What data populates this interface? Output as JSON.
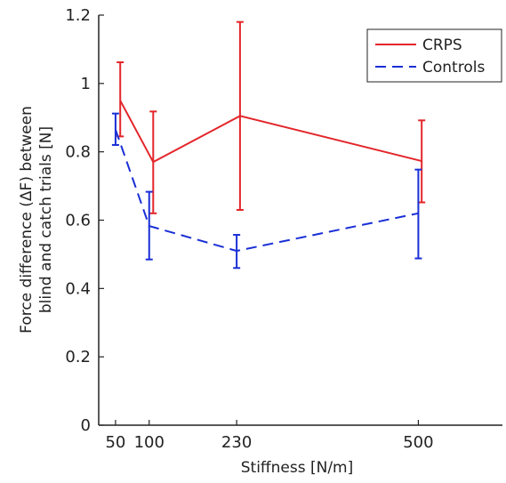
{
  "chart_data": {
    "type": "line",
    "xlabel": "Stiffness [N/m]",
    "ylabel_lines": [
      "Force difference (ΔF) between",
      "blind and catch trials [N]"
    ],
    "xlim": [
      25,
      625
    ],
    "ylim": [
      0,
      1.2
    ],
    "xticks": [
      50,
      100,
      230,
      500
    ],
    "xtick_labels": [
      "50",
      "100",
      "230",
      "500"
    ],
    "yticks": [
      0,
      0.2,
      0.4,
      0.6,
      0.8,
      1,
      1.2
    ],
    "ytick_labels": [
      "0",
      "0.2",
      "0.4",
      "0.6",
      "0.8",
      "1",
      "1.2"
    ],
    "grid": false,
    "legend_position": "top-right",
    "series": [
      {
        "name": "CRPS",
        "color": "#e3262b",
        "style": "solid",
        "x": [
          57,
          106,
          235,
          505
        ],
        "y": [
          0.95,
          0.77,
          0.905,
          0.773
        ],
        "err_low": [
          0.845,
          0.62,
          0.63,
          0.652
        ],
        "err_high": [
          1.062,
          0.918,
          1.18,
          0.892
        ]
      },
      {
        "name": "Controls",
        "color": "#1a2fd6",
        "style": "dashed",
        "x": [
          50,
          100,
          230,
          500
        ],
        "y": [
          0.865,
          0.583,
          0.51,
          0.62
        ],
        "err_low": [
          0.82,
          0.485,
          0.46,
          0.488
        ],
        "err_high": [
          0.912,
          0.683,
          0.557,
          0.748
        ]
      }
    ]
  }
}
